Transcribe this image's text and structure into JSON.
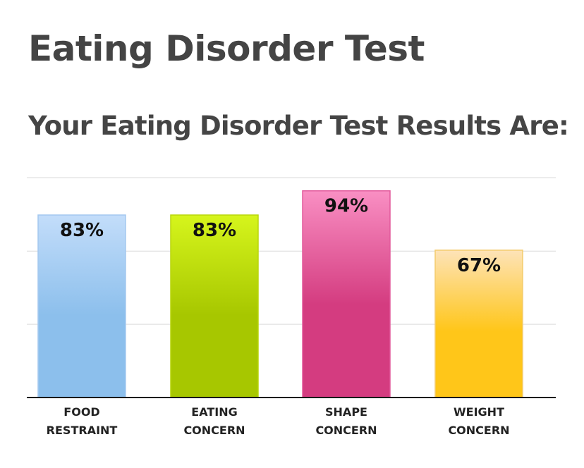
{
  "page": {
    "title": "Eating Disorder Test",
    "subtitle": "Your Eating Disorder Test Results Are:"
  },
  "chart_data": {
    "type": "bar",
    "categories": [
      [
        "FOOD",
        "RESTRAINT"
      ],
      [
        "EATING",
        "CONCERN"
      ],
      [
        "SHAPE",
        "CONCERN"
      ],
      [
        "WEIGHT",
        "CONCERN"
      ]
    ],
    "values": [
      83,
      83,
      94,
      67
    ],
    "value_labels": [
      "83%",
      "83%",
      "94%",
      "67%"
    ],
    "ylim": [
      0,
      100
    ],
    "gridlines": [
      33.3,
      66.6,
      100
    ],
    "grid": true,
    "bar_colors": [
      [
        "#c3ddfa",
        "#8cbfec",
        "#a4c8ef"
      ],
      [
        "#d6f51c",
        "#a7c700",
        "#b9d60e"
      ],
      [
        "#f98fc3",
        "#d43c80",
        "#e25a9c"
      ],
      [
        "#fde3b8",
        "#ffc619",
        "#f3cc6d"
      ]
    ]
  }
}
